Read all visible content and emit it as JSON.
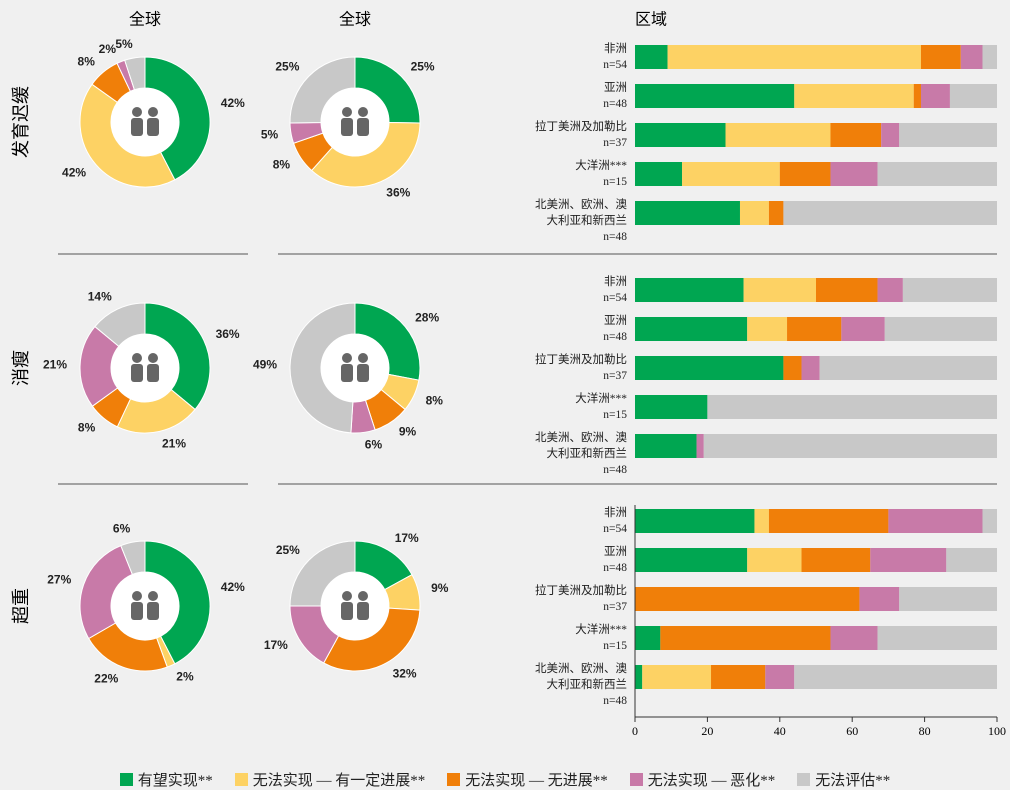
{
  "column_titles": [
    "全球",
    "全球",
    "区域"
  ],
  "row_labels": [
    "发育迟缓",
    "消瘦",
    "超重"
  ],
  "chart_data": [
    {
      "type": "pie",
      "donut": true,
      "values": [
        42,
        42,
        8,
        2,
        5
      ],
      "value_labels": [
        "42%",
        "42%",
        "8%",
        "2%",
        "5%"
      ],
      "colors": [
        "#00a651",
        "#fdd264",
        "#f07f09",
        "#c87aa8",
        "#c8c8c8"
      ]
    },
    {
      "type": "pie",
      "donut": true,
      "values": [
        25,
        36,
        8,
        5,
        25
      ],
      "value_labels": [
        "25%",
        "36%",
        "8%",
        "5%",
        "25%"
      ],
      "colors": [
        "#00a651",
        "#fdd264",
        "#f07f09",
        "#c87aa8",
        "#c8c8c8"
      ]
    },
    {
      "type": "bar",
      "orientation": "horizontal",
      "stacked": true,
      "xlim": [
        0,
        100
      ],
      "categories": [
        "非洲\nn=54",
        "亚洲\nn=48",
        "拉丁美洲及加勒比\nn=37",
        "大洋洲***\nn=15",
        "北美洲、欧洲、澳\n大利亚和新西兰\nn=48"
      ],
      "series": [
        {
          "name": "有望实现**",
          "color": "#00a651",
          "values": [
            9,
            44,
            25,
            13,
            29
          ]
        },
        {
          "name": "无法实现 — 有一定进展**",
          "color": "#fdd264",
          "values": [
            70,
            33,
            29,
            27,
            8
          ]
        },
        {
          "name": "无法实现 — 无进展**",
          "color": "#f07f09",
          "values": [
            11,
            2,
            14,
            14,
            4
          ]
        },
        {
          "name": "无法实现 — 恶化**",
          "color": "#c87aa8",
          "values": [
            6,
            8,
            5,
            13,
            0
          ]
        },
        {
          "name": "无法评估**",
          "color": "#c8c8c8",
          "values": [
            4,
            13,
            27,
            33,
            59
          ]
        }
      ]
    },
    {
      "type": "pie",
      "donut": true,
      "values": [
        36,
        21,
        8,
        21,
        14
      ],
      "value_labels": [
        "36%",
        "21%",
        "8%",
        "21%",
        "14%"
      ],
      "colors": [
        "#00a651",
        "#fdd264",
        "#f07f09",
        "#c87aa8",
        "#c8c8c8"
      ]
    },
    {
      "type": "pie",
      "donut": true,
      "values": [
        28,
        8,
        9,
        6,
        49
      ],
      "value_labels": [
        "28%",
        "8%",
        "9%",
        "6%",
        "49%"
      ],
      "colors": [
        "#00a651",
        "#fdd264",
        "#f07f09",
        "#c87aa8",
        "#c8c8c8"
      ]
    },
    {
      "type": "bar",
      "orientation": "horizontal",
      "stacked": true,
      "xlim": [
        0,
        100
      ],
      "categories": [
        "非洲\nn=54",
        "亚洲\nn=48",
        "拉丁美洲及加勒比\nn=37",
        "大洋洲***\nn=15",
        "北美洲、欧洲、澳\n大利亚和新西兰\nn=48"
      ],
      "series": [
        {
          "name": "有望实现**",
          "color": "#00a651",
          "values": [
            30,
            31,
            41,
            20,
            17
          ]
        },
        {
          "name": "无法实现 — 有一定进展**",
          "color": "#fdd264",
          "values": [
            20,
            11,
            0,
            0,
            0
          ]
        },
        {
          "name": "无法实现 — 无进展**",
          "color": "#f07f09",
          "values": [
            17,
            15,
            5,
            0,
            0
          ]
        },
        {
          "name": "无法实现 — 恶化**",
          "color": "#c87aa8",
          "values": [
            7,
            12,
            5,
            0,
            2
          ]
        },
        {
          "name": "无法评估**",
          "color": "#c8c8c8",
          "values": [
            26,
            31,
            49,
            80,
            81
          ]
        }
      ]
    },
    {
      "type": "pie",
      "donut": true,
      "values": [
        42,
        2,
        22,
        27,
        6
      ],
      "value_labels": [
        "42%",
        "2%",
        "22%",
        "27%",
        "6%"
      ],
      "colors": [
        "#00a651",
        "#fdd264",
        "#f07f09",
        "#c87aa8",
        "#c8c8c8"
      ]
    },
    {
      "type": "pie",
      "donut": true,
      "values": [
        17,
        9,
        32,
        17,
        25
      ],
      "value_labels": [
        "17%",
        "9%",
        "32%",
        "17%",
        "25%"
      ],
      "colors": [
        "#00a651",
        "#fdd264",
        "#f07f09",
        "#c87aa8",
        "#c8c8c8"
      ]
    },
    {
      "type": "bar",
      "orientation": "horizontal",
      "stacked": true,
      "xlim": [
        0,
        100
      ],
      "xticks": [
        0,
        20,
        40,
        60,
        80,
        100
      ],
      "categories": [
        "非洲\nn=54",
        "亚洲\nn=48",
        "拉丁美洲及加勒比\nn=37",
        "大洋洲***\nn=15",
        "北美洲、欧洲、澳\n大利亚和新西兰\nn=48"
      ],
      "series": [
        {
          "name": "有望实现**",
          "color": "#00a651",
          "values": [
            33,
            31,
            0,
            7,
            2
          ]
        },
        {
          "name": "无法实现 — 有一定进展**",
          "color": "#fdd264",
          "values": [
            4,
            15,
            0,
            0,
            19
          ]
        },
        {
          "name": "无法实现 — 无进展**",
          "color": "#f07f09",
          "values": [
            33,
            19,
            62,
            47,
            15
          ]
        },
        {
          "name": "无法实现 — 恶化**",
          "color": "#c87aa8",
          "values": [
            26,
            21,
            11,
            13,
            8
          ]
        },
        {
          "name": "无法评估**",
          "color": "#c8c8c8",
          "values": [
            4,
            14,
            27,
            33,
            56
          ]
        }
      ]
    }
  ]
}
